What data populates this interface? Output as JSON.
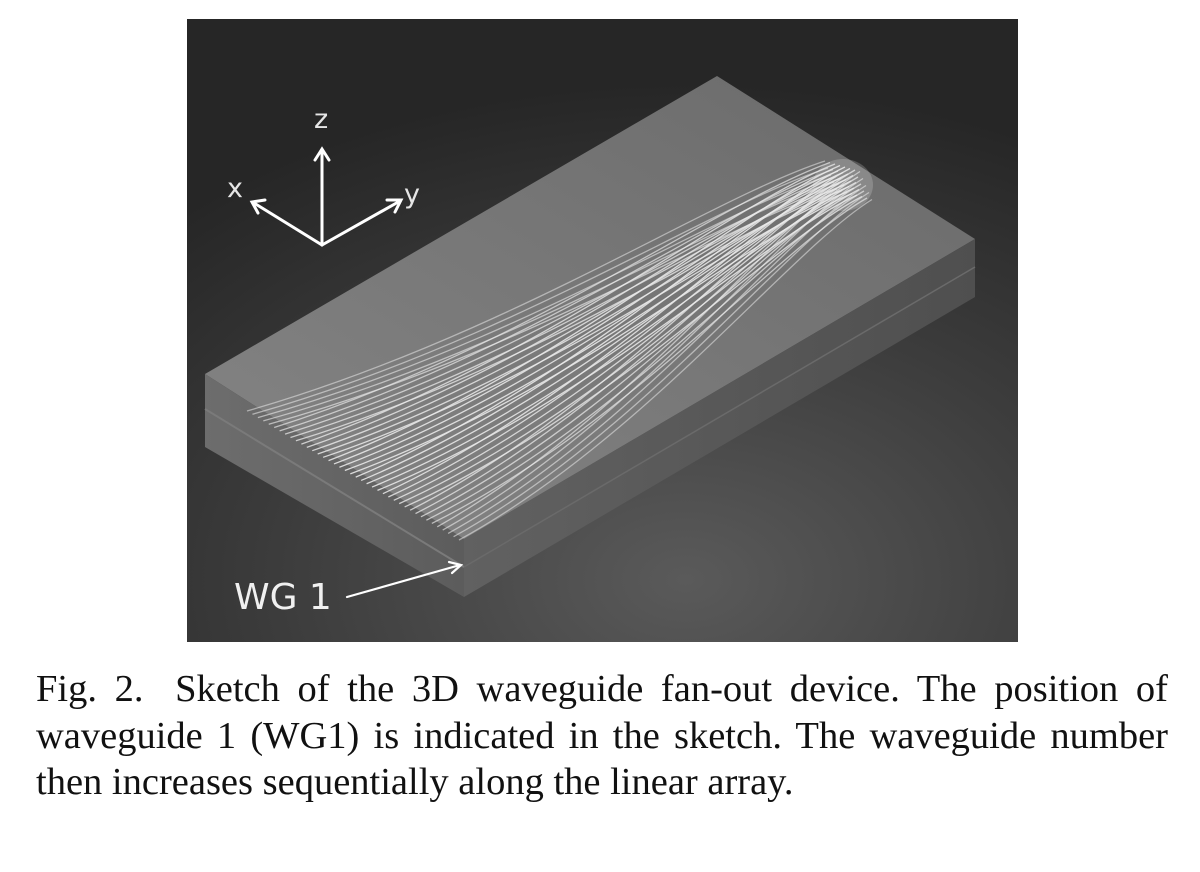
{
  "figure": {
    "axes": {
      "x_label": "x",
      "y_label": "y",
      "z_label": "z"
    },
    "pointer_label": "WG 1",
    "colors": {
      "background_dark": "#262626",
      "block_top": "#6e6e6e",
      "block_side": "#4f4f4f",
      "waveguide": "#e8e8e8"
    }
  },
  "caption": {
    "number": "Fig. 2.",
    "text": "Sketch of the 3D waveguide fan-out device. The position of waveguide 1 (WG1) is indicated in the sketch. The waveguide number then increases sequentially along the linear array."
  }
}
